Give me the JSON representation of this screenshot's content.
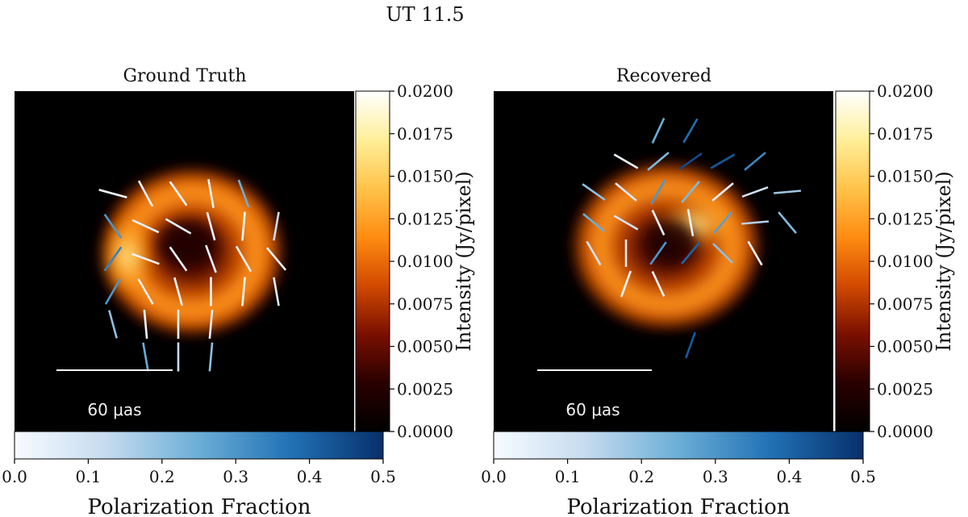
{
  "figure": {
    "suptitle": "UT 11.5"
  },
  "colors": {
    "afmhot_stops": [
      "#000000",
      "#2a0000",
      "#7a1000",
      "#d24a00",
      "#ff8c12",
      "#ffc34a",
      "#ffef9a",
      "#ffffff"
    ],
    "blues_stops": [
      "#f7fbff",
      "#c6dbef",
      "#6baed6",
      "#2171b5",
      "#08306b"
    ],
    "scalebar": "#ffffff"
  },
  "chart_data": [
    {
      "type": "heatmap",
      "title": "Ground Truth",
      "colorbar_intensity": {
        "label": "Intensity (Jy/pixel)",
        "range": [
          0.0,
          0.02
        ],
        "ticks": [
          "0.0000",
          "0.0025",
          "0.0050",
          "0.0075",
          "0.0100",
          "0.0125",
          "0.0150",
          "0.0175",
          "0.0200"
        ]
      },
      "colorbar_polarization": {
        "label": "Polarization Fraction",
        "range": [
          0.0,
          0.5
        ],
        "ticks": [
          "0.0",
          "0.1",
          "0.2",
          "0.3",
          "0.4",
          "0.5"
        ]
      },
      "scalebar_label": "60 μas",
      "ring": {
        "center": [
          0.0,
          0.0
        ],
        "radius_uas": 26,
        "peak_intensity": 0.0185,
        "brightest_side": "west"
      },
      "vectors_note": "polarization ticks colored by fraction (0.0 white to 0.5 dark blue)",
      "vectors": [
        {
          "angle_deg": 15,
          "frac": 0.02
        },
        {
          "angle_deg": 62,
          "frac": 0.03
        },
        {
          "angle_deg": 55,
          "frac": 0.02
        },
        {
          "angle_deg": 80,
          "frac": 0.02
        },
        {
          "angle_deg": 70,
          "frac": 0.25
        },
        {
          "angle_deg": 55,
          "frac": 0.3
        },
        {
          "angle_deg": 25,
          "frac": 0.05
        },
        {
          "angle_deg": 30,
          "frac": 0.04
        },
        {
          "angle_deg": 75,
          "frac": 0.02
        },
        {
          "angle_deg": 95,
          "frac": 0.02
        },
        {
          "angle_deg": 100,
          "frac": 0.12
        },
        {
          "angle_deg": 125,
          "frac": 0.34
        },
        {
          "angle_deg": 20,
          "frac": 0.03
        },
        {
          "angle_deg": 55,
          "frac": 0.02
        },
        {
          "angle_deg": 70,
          "frac": 0.02
        },
        {
          "angle_deg": 60,
          "frac": 0.02
        },
        {
          "angle_deg": 50,
          "frac": 0.03
        },
        {
          "angle_deg": 120,
          "frac": 0.3
        },
        {
          "angle_deg": 60,
          "frac": 0.03
        },
        {
          "angle_deg": 75,
          "frac": 0.02
        },
        {
          "angle_deg": 90,
          "frac": 0.02
        },
        {
          "angle_deg": 95,
          "frac": 0.03
        },
        {
          "angle_deg": 80,
          "frac": 0.06
        },
        {
          "angle_deg": 75,
          "frac": 0.2
        },
        {
          "angle_deg": 85,
          "frac": 0.02
        },
        {
          "angle_deg": 90,
          "frac": 0.03
        },
        {
          "angle_deg": 95,
          "frac": 0.05
        },
        {
          "angle_deg": 80,
          "frac": 0.25
        },
        {
          "angle_deg": 90,
          "frac": 0.12
        },
        {
          "angle_deg": 95,
          "frac": 0.2
        }
      ]
    },
    {
      "type": "heatmap",
      "title": "Recovered",
      "colorbar_intensity": {
        "label": "Intensity (Jy/pixel)",
        "range": [
          0.0,
          0.02
        ],
        "ticks": [
          "0.0000",
          "0.0025",
          "0.0050",
          "0.0075",
          "0.0100",
          "0.0125",
          "0.0150",
          "0.0175",
          "0.0200"
        ]
      },
      "colorbar_polarization": {
        "label": "Polarization Fraction",
        "range": [
          0.0,
          0.5
        ],
        "ticks": [
          "0.0",
          "0.1",
          "0.2",
          "0.3",
          "0.4",
          "0.5"
        ]
      },
      "scalebar_label": "60 μas",
      "ring": {
        "center": [
          0.0,
          0.0
        ],
        "radius_uas": 26,
        "peak_intensity": 0.018,
        "brightest_side": "north-east"
      },
      "vectors_note": "polarization ticks colored by fraction (0.0 white to 0.5 dark blue)",
      "vectors": [
        {
          "angle_deg": 115,
          "frac": 0.25
        },
        {
          "angle_deg": 120,
          "frac": 0.38
        },
        {
          "angle_deg": 30,
          "frac": 0.03
        },
        {
          "angle_deg": 140,
          "frac": 0.22
        },
        {
          "angle_deg": 145,
          "frac": 0.45
        },
        {
          "angle_deg": 150,
          "frac": 0.42
        },
        {
          "angle_deg": 140,
          "frac": 0.33
        },
        {
          "angle_deg": 35,
          "frac": 0.2
        },
        {
          "angle_deg": 40,
          "frac": 0.08
        },
        {
          "angle_deg": 120,
          "frac": 0.3
        },
        {
          "angle_deg": 130,
          "frac": 0.22
        },
        {
          "angle_deg": 140,
          "frac": 0.06
        },
        {
          "angle_deg": 160,
          "frac": 0.1
        },
        {
          "angle_deg": 175,
          "frac": 0.18
        },
        {
          "angle_deg": 40,
          "frac": 0.25
        },
        {
          "angle_deg": 30,
          "frac": 0.1
        },
        {
          "angle_deg": 65,
          "frac": 0.03
        },
        {
          "angle_deg": 80,
          "frac": 0.03
        },
        {
          "angle_deg": 130,
          "frac": 0.28
        },
        {
          "angle_deg": 175,
          "frac": 0.15
        },
        {
          "angle_deg": 50,
          "frac": 0.22
        },
        {
          "angle_deg": 60,
          "frac": 0.1
        },
        {
          "angle_deg": 90,
          "frac": 0.05
        },
        {
          "angle_deg": 125,
          "frac": 0.3
        },
        {
          "angle_deg": 130,
          "frac": 0.4
        },
        {
          "angle_deg": 45,
          "frac": 0.2
        },
        {
          "angle_deg": 60,
          "frac": 0.05
        },
        {
          "angle_deg": 110,
          "frac": 0.03
        },
        {
          "angle_deg": 65,
          "frac": 0.02
        },
        {
          "angle_deg": 110,
          "frac": 0.42
        }
      ]
    }
  ]
}
